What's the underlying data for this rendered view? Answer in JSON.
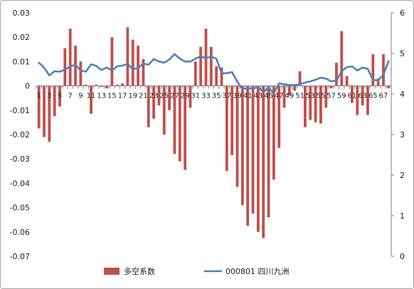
{
  "chart_data": {
    "type": "bar+line",
    "title": "",
    "xlabel": "",
    "ylabel": "",
    "legend_position": "bottom",
    "grid": false,
    "y_left": {
      "range": [
        -0.07,
        0.03
      ],
      "ticks": [
        0.03,
        0.02,
        0.01,
        0,
        -0.01,
        -0.02,
        -0.03,
        -0.04,
        -0.05,
        -0.06,
        -0.07
      ],
      "tick_labels": [
        "0.03",
        "0.02",
        "0.01",
        "0",
        "-0.01",
        "-0.02",
        "-0.03",
        "-0.04",
        "-0.05",
        "-0.06",
        "-0.07"
      ]
    },
    "y_right": {
      "range": [
        0,
        6
      ],
      "ticks": [
        6,
        5,
        4,
        3,
        2,
        1,
        0
      ],
      "tick_labels": [
        "6",
        "5",
        "4",
        "3",
        "2",
        "1",
        "0"
      ]
    },
    "x": [
      1,
      2,
      3,
      4,
      5,
      6,
      7,
      8,
      9,
      10,
      11,
      12,
      13,
      14,
      15,
      16,
      17,
      18,
      19,
      20,
      21,
      22,
      23,
      24,
      25,
      26,
      27,
      28,
      29,
      30,
      31,
      32,
      33,
      34,
      35,
      36,
      37,
      38,
      39,
      40,
      41,
      42,
      43,
      44,
      45,
      46,
      47,
      48,
      49,
      50,
      51,
      52,
      53,
      54,
      55,
      56,
      57,
      58,
      59,
      60,
      61,
      62,
      63,
      64,
      65,
      66,
      67,
      68
    ],
    "x_tick_labels": [
      "1",
      "3",
      "5",
      "7",
      "9",
      "11",
      "13",
      "15",
      "17",
      "19",
      "21",
      "23",
      "25",
      "27",
      "29",
      "31",
      "33",
      "35",
      "37",
      "39",
      "41",
      "43",
      "45",
      "47",
      "49",
      "51",
      "53",
      "55",
      "57",
      "59",
      "61",
      "63",
      "65",
      "67"
    ],
    "series": [
      {
        "name": "多空系数",
        "type": "bar",
        "axis": "left",
        "color": "#c0504d",
        "values": [
          -0.0175,
          -0.021,
          -0.023,
          -0.0125,
          -0.0085,
          0.0155,
          0.0235,
          0.0165,
          0.01,
          0.0005,
          -0.0115,
          0.0005,
          -0.0005,
          -0.001,
          0.02,
          0.0005,
          0.001,
          0.024,
          0.019,
          0.0165,
          0.011,
          -0.017,
          -0.0135,
          -0.008,
          -0.02,
          -0.01,
          -0.028,
          -0.031,
          -0.0345,
          -0.009,
          0.01,
          0.016,
          0.0235,
          0.016,
          0.008,
          0.0075,
          -0.035,
          -0.0285,
          -0.0415,
          -0.049,
          -0.0575,
          -0.0525,
          -0.06,
          -0.0625,
          -0.054,
          -0.0385,
          -0.0255,
          -0.009,
          -0.004,
          -0.002,
          0.006,
          -0.017,
          -0.014,
          -0.015,
          -0.0155,
          -0.009,
          -0.001,
          0.0095,
          0.0225,
          0.004,
          -0.007,
          -0.012,
          -0.008,
          -0.012,
          0.013,
          0.003,
          0.013,
          -0.001
        ]
      },
      {
        "name": "000801 四川九洲",
        "type": "line",
        "axis": "right",
        "color": "#4f81bd",
        "values": [
          4.77,
          4.65,
          4.46,
          4.56,
          4.55,
          4.6,
          4.68,
          4.72,
          4.58,
          4.55,
          4.73,
          4.69,
          4.59,
          4.65,
          4.58,
          4.68,
          4.7,
          4.74,
          4.61,
          4.64,
          4.75,
          4.72,
          4.86,
          4.8,
          4.77,
          4.85,
          4.98,
          4.87,
          4.8,
          4.8,
          4.87,
          4.93,
          4.88,
          4.92,
          4.87,
          4.51,
          4.51,
          4.54,
          4.3,
          4.12,
          4.14,
          4.13,
          4.17,
          4.05,
          4.15,
          4.02,
          4.26,
          4.24,
          4.22,
          4.22,
          4.24,
          4.28,
          4.31,
          4.35,
          4.4,
          4.38,
          4.31,
          4.33,
          4.56,
          4.66,
          4.68,
          4.58,
          4.65,
          4.62,
          4.34,
          4.34,
          4.47,
          4.81
        ]
      }
    ]
  }
}
